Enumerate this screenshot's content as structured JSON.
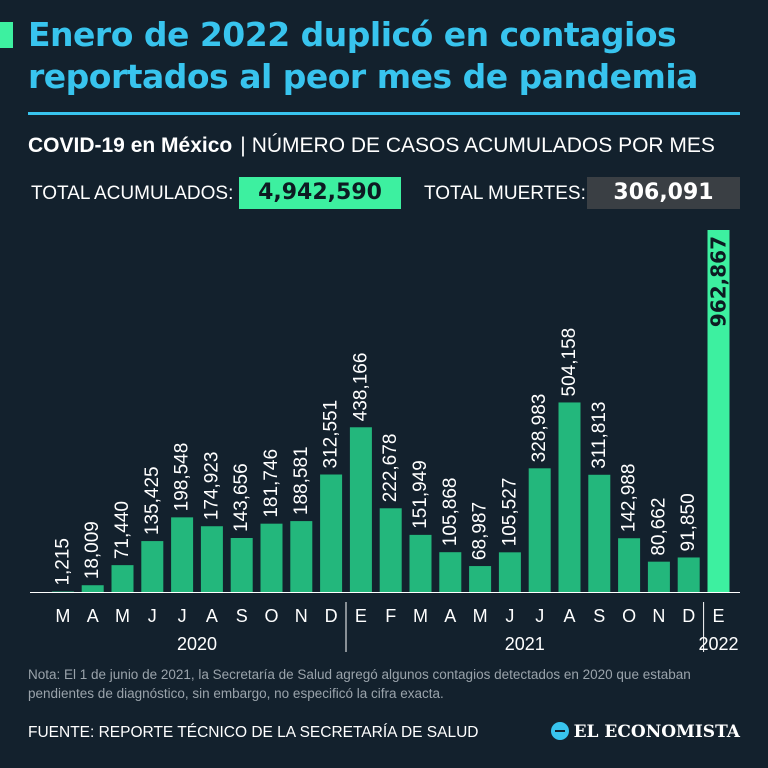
{
  "title": "Enero de 2022 duplicó en contagios reportados al peor mes de pandemia",
  "subtitle": {
    "strong": "COVID-19 en México",
    "separator": "|",
    "rest": "NÚMERO DE CASOS ACUMULADOS POR MES"
  },
  "totals": {
    "cases_label": "TOTAL ACUMULADOS:",
    "cases_value": "4,942,590",
    "deaths_label": "TOTAL MUERTES:",
    "deaths_value": "306,091"
  },
  "colors": {
    "background": "#13212d",
    "bar": "#23b77c",
    "highlight": "#3df0a0",
    "title": "#38c4ee"
  },
  "chart_data": {
    "type": "bar",
    "title": "Número de casos acumulados por mes",
    "xlabel": "",
    "ylabel": "",
    "ylim": [
      0,
      962867
    ],
    "categories": [
      "M",
      "A",
      "M",
      "J",
      "J",
      "A",
      "S",
      "O",
      "N",
      "D",
      "E",
      "F",
      "M",
      "A",
      "M",
      "J",
      "J",
      "A",
      "S",
      "O",
      "N",
      "D",
      "E"
    ],
    "values": [
      1215,
      18009,
      71440,
      135425,
      198548,
      174923,
      143656,
      181746,
      188581,
      312551,
      438166,
      222678,
      151949,
      105868,
      68987,
      105527,
      328983,
      504158,
      311813,
      142988,
      80662,
      91850,
      962867
    ],
    "value_labels": [
      "1,215",
      "18,009",
      "71,440",
      "135,425",
      "198,548",
      "174,923",
      "143,656",
      "181,746",
      "188,581",
      "312,551",
      "438,166",
      "222,678",
      "151,949",
      "105,868",
      "68,987",
      "105,527",
      "328,983",
      "504,158",
      "311,813",
      "142,988",
      "80,662",
      "91,850",
      "962,867"
    ],
    "highlight_index": 22,
    "year_groups": [
      {
        "label": "2020",
        "start": 0,
        "end": 9
      },
      {
        "label": "2021",
        "start": 10,
        "end": 21
      },
      {
        "label": "2022",
        "start": 22,
        "end": 22
      }
    ]
  },
  "note": "Nota: El 1 de junio de 2021, la Secretaría de Salud agregó algunos contagios detectados en 2020 que estaban pendientes de diagnóstico, sin embargo, no especificó la cifra exacta.",
  "source": "FUENTE: REPORTE TÉCNICO DE LA SECRETARÍA DE SALUD",
  "brand": "EL ECONOMISTA"
}
